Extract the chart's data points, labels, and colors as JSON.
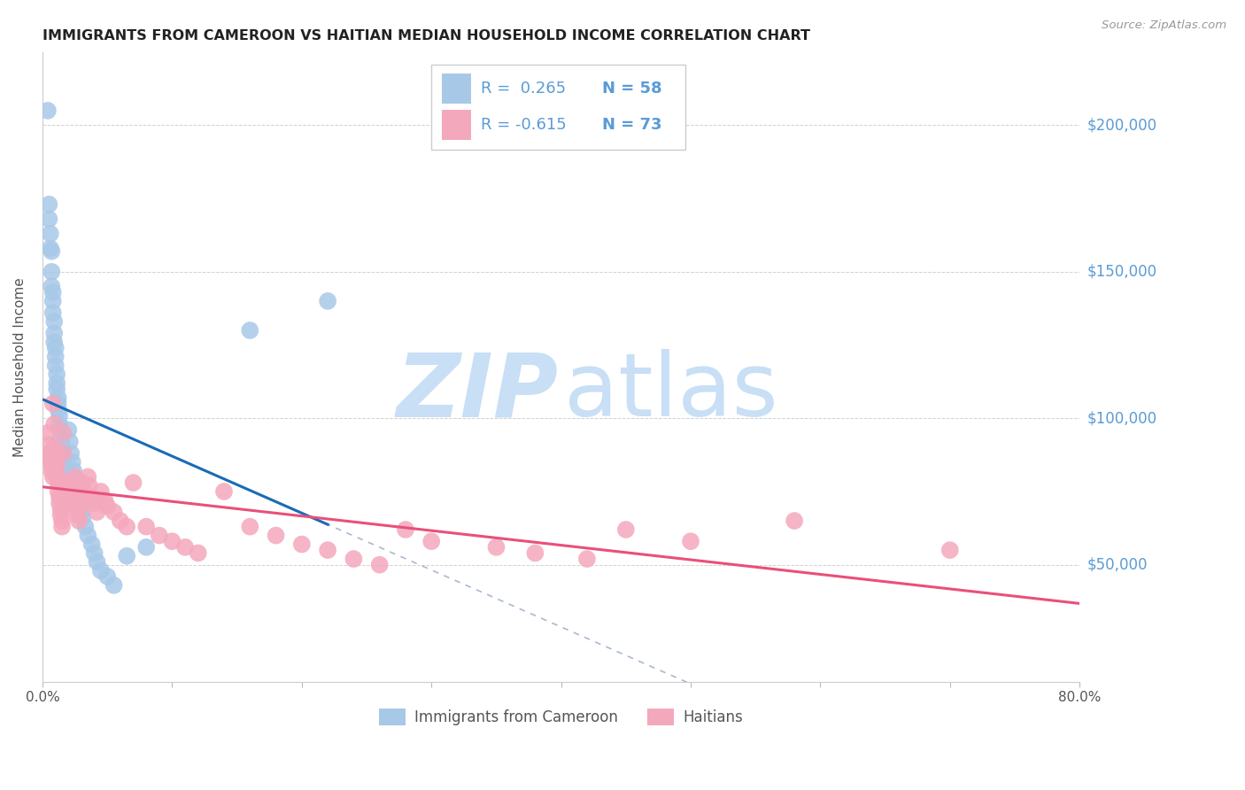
{
  "title": "IMMIGRANTS FROM CAMEROON VS HAITIAN MEDIAN HOUSEHOLD INCOME CORRELATION CHART",
  "source": "Source: ZipAtlas.com",
  "ylabel": "Median Household Income",
  "y_ticks": [
    50000,
    100000,
    150000,
    200000
  ],
  "y_tick_labels": [
    "$50,000",
    "$100,000",
    "$150,000",
    "$200,000"
  ],
  "x_min": 0.0,
  "x_max": 0.8,
  "y_min": 10000,
  "y_max": 225000,
  "cameroon_color": "#a8c8e8",
  "haitian_color": "#f4a8bc",
  "blue_line_color": "#1a6bb5",
  "pink_line_color": "#e8507a",
  "dashed_line_color": "#aab8d0",
  "watermark_zip_color": "#c8dff5",
  "watermark_atlas_color": "#c8dff5",
  "title_color": "#222222",
  "source_color": "#999999",
  "right_label_color": "#5b9bd5",
  "legend_border_color": "#cccccc",
  "legend_text_color": "#333333",
  "grid_color": "#cccccc",
  "cam_x": [
    0.004,
    0.005,
    0.005,
    0.006,
    0.006,
    0.007,
    0.007,
    0.007,
    0.008,
    0.008,
    0.008,
    0.009,
    0.009,
    0.009,
    0.01,
    0.01,
    0.01,
    0.011,
    0.011,
    0.011,
    0.012,
    0.012,
    0.012,
    0.013,
    0.013,
    0.014,
    0.014,
    0.015,
    0.015,
    0.016,
    0.016,
    0.017,
    0.017,
    0.018,
    0.019,
    0.02,
    0.021,
    0.022,
    0.023,
    0.024,
    0.025,
    0.026,
    0.027,
    0.028,
    0.03,
    0.031,
    0.033,
    0.035,
    0.038,
    0.04,
    0.042,
    0.045,
    0.05,
    0.055,
    0.065,
    0.08,
    0.16,
    0.22
  ],
  "cam_y": [
    205000,
    173000,
    168000,
    163000,
    158000,
    157000,
    150000,
    145000,
    143000,
    140000,
    136000,
    133000,
    129000,
    126000,
    124000,
    121000,
    118000,
    115000,
    112000,
    110000,
    107000,
    105000,
    103000,
    101000,
    98000,
    96000,
    93000,
    91000,
    89000,
    87000,
    85000,
    83000,
    81000,
    79000,
    78000,
    96000,
    92000,
    88000,
    85000,
    82000,
    79000,
    76000,
    74000,
    71000,
    68000,
    66000,
    63000,
    60000,
    57000,
    54000,
    51000,
    48000,
    46000,
    43000,
    53000,
    56000,
    130000,
    140000
  ],
  "hai_x": [
    0.004,
    0.005,
    0.006,
    0.006,
    0.007,
    0.007,
    0.008,
    0.008,
    0.009,
    0.009,
    0.01,
    0.01,
    0.011,
    0.011,
    0.012,
    0.012,
    0.013,
    0.013,
    0.014,
    0.014,
    0.015,
    0.015,
    0.016,
    0.016,
    0.017,
    0.018,
    0.019,
    0.02,
    0.021,
    0.022,
    0.023,
    0.024,
    0.025,
    0.026,
    0.027,
    0.028,
    0.03,
    0.031,
    0.032,
    0.033,
    0.035,
    0.036,
    0.038,
    0.04,
    0.042,
    0.045,
    0.048,
    0.05,
    0.055,
    0.06,
    0.065,
    0.07,
    0.08,
    0.09,
    0.1,
    0.11,
    0.12,
    0.14,
    0.16,
    0.18,
    0.2,
    0.22,
    0.24,
    0.26,
    0.28,
    0.3,
    0.35,
    0.38,
    0.42,
    0.45,
    0.5,
    0.58,
    0.7
  ],
  "hai_y": [
    95000,
    91000,
    88000,
    86000,
    84000,
    82000,
    80000,
    105000,
    98000,
    90000,
    88000,
    85000,
    83000,
    80000,
    78000,
    75000,
    73000,
    71000,
    69000,
    67000,
    65000,
    63000,
    95000,
    88000,
    78000,
    75000,
    73000,
    71000,
    78000,
    75000,
    73000,
    71000,
    80000,
    69000,
    67000,
    65000,
    78000,
    76000,
    73000,
    71000,
    80000,
    77000,
    73000,
    71000,
    68000,
    75000,
    72000,
    70000,
    68000,
    65000,
    63000,
    78000,
    63000,
    60000,
    58000,
    56000,
    54000,
    75000,
    63000,
    60000,
    57000,
    55000,
    52000,
    50000,
    62000,
    58000,
    56000,
    54000,
    52000,
    62000,
    58000,
    65000,
    55000
  ]
}
